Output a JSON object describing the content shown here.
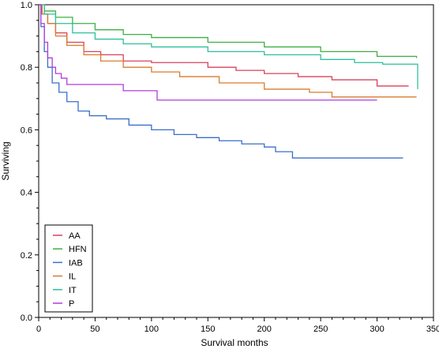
{
  "chart_data": {
    "type": "line",
    "step": true,
    "xlabel": "Survival months",
    "ylabel": "Surviving",
    "xlim": [
      0,
      350
    ],
    "ylim": [
      0.0,
      1.0
    ],
    "xticks": [
      0,
      50,
      100,
      150,
      200,
      250,
      300,
      350
    ],
    "yticks": [
      0.0,
      0.2,
      0.4,
      0.6,
      0.8,
      1.0
    ],
    "xtick_labels": [
      "0",
      "50",
      "100",
      "150",
      "200",
      "250",
      "300",
      "350"
    ],
    "ytick_labels": [
      "0.0",
      "0.2",
      "0.4",
      "0.6",
      "0.8",
      "1.0"
    ],
    "legend_position": "bottom-left",
    "grid": false,
    "series": [
      {
        "name": "AA",
        "color": "#d9415c",
        "points": [
          [
            0,
            1.0
          ],
          [
            3,
            0.97
          ],
          [
            8,
            0.94
          ],
          [
            15,
            0.91
          ],
          [
            25,
            0.88
          ],
          [
            40,
            0.85
          ],
          [
            55,
            0.84
          ],
          [
            75,
            0.82
          ],
          [
            100,
            0.815
          ],
          [
            150,
            0.8
          ],
          [
            175,
            0.79
          ],
          [
            200,
            0.78
          ],
          [
            230,
            0.77
          ],
          [
            260,
            0.76
          ],
          [
            300,
            0.74
          ],
          [
            328,
            0.74
          ]
        ]
      },
      {
        "name": "HFN",
        "color": "#3cb043",
        "points": [
          [
            0,
            1.0
          ],
          [
            5,
            0.98
          ],
          [
            15,
            0.96
          ],
          [
            30,
            0.94
          ],
          [
            50,
            0.92
          ],
          [
            75,
            0.905
          ],
          [
            100,
            0.895
          ],
          [
            150,
            0.88
          ],
          [
            200,
            0.865
          ],
          [
            250,
            0.85
          ],
          [
            300,
            0.835
          ],
          [
            335,
            0.83
          ]
        ]
      },
      {
        "name": "IAB",
        "color": "#3a6fc8",
        "points": [
          [
            0,
            1.0
          ],
          [
            2,
            0.93
          ],
          [
            5,
            0.85
          ],
          [
            8,
            0.8
          ],
          [
            12,
            0.75
          ],
          [
            18,
            0.72
          ],
          [
            25,
            0.69
          ],
          [
            35,
            0.66
          ],
          [
            45,
            0.645
          ],
          [
            60,
            0.635
          ],
          [
            80,
            0.615
          ],
          [
            100,
            0.6
          ],
          [
            120,
            0.585
          ],
          [
            140,
            0.575
          ],
          [
            160,
            0.565
          ],
          [
            180,
            0.555
          ],
          [
            200,
            0.545
          ],
          [
            210,
            0.53
          ],
          [
            225,
            0.51
          ],
          [
            260,
            0.51
          ],
          [
            323,
            0.51
          ]
        ]
      },
      {
        "name": "IL",
        "color": "#d97b2b",
        "points": [
          [
            0,
            1.0
          ],
          [
            3,
            0.97
          ],
          [
            8,
            0.94
          ],
          [
            15,
            0.9
          ],
          [
            25,
            0.87
          ],
          [
            40,
            0.84
          ],
          [
            55,
            0.82
          ],
          [
            75,
            0.8
          ],
          [
            100,
            0.785
          ],
          [
            125,
            0.77
          ],
          [
            160,
            0.75
          ],
          [
            200,
            0.73
          ],
          [
            240,
            0.72
          ],
          [
            260,
            0.705
          ],
          [
            300,
            0.705
          ],
          [
            335,
            0.705
          ]
        ]
      },
      {
        "name": "IT",
        "color": "#2fbf9a",
        "points": [
          [
            0,
            1.0
          ],
          [
            5,
            0.97
          ],
          [
            15,
            0.94
          ],
          [
            30,
            0.91
          ],
          [
            50,
            0.89
          ],
          [
            75,
            0.875
          ],
          [
            100,
            0.865
          ],
          [
            150,
            0.85
          ],
          [
            200,
            0.84
          ],
          [
            250,
            0.825
          ],
          [
            280,
            0.815
          ],
          [
            305,
            0.81
          ],
          [
            335,
            0.81
          ],
          [
            336,
            0.73
          ]
        ]
      },
      {
        "name": "P",
        "color": "#b03cdc",
        "points": [
          [
            0,
            1.0
          ],
          [
            2,
            0.94
          ],
          [
            5,
            0.88
          ],
          [
            8,
            0.83
          ],
          [
            12,
            0.8
          ],
          [
            15,
            0.78
          ],
          [
            20,
            0.765
          ],
          [
            25,
            0.745
          ],
          [
            75,
            0.725
          ],
          [
            105,
            0.695
          ],
          [
            300,
            0.695
          ]
        ]
      }
    ]
  }
}
